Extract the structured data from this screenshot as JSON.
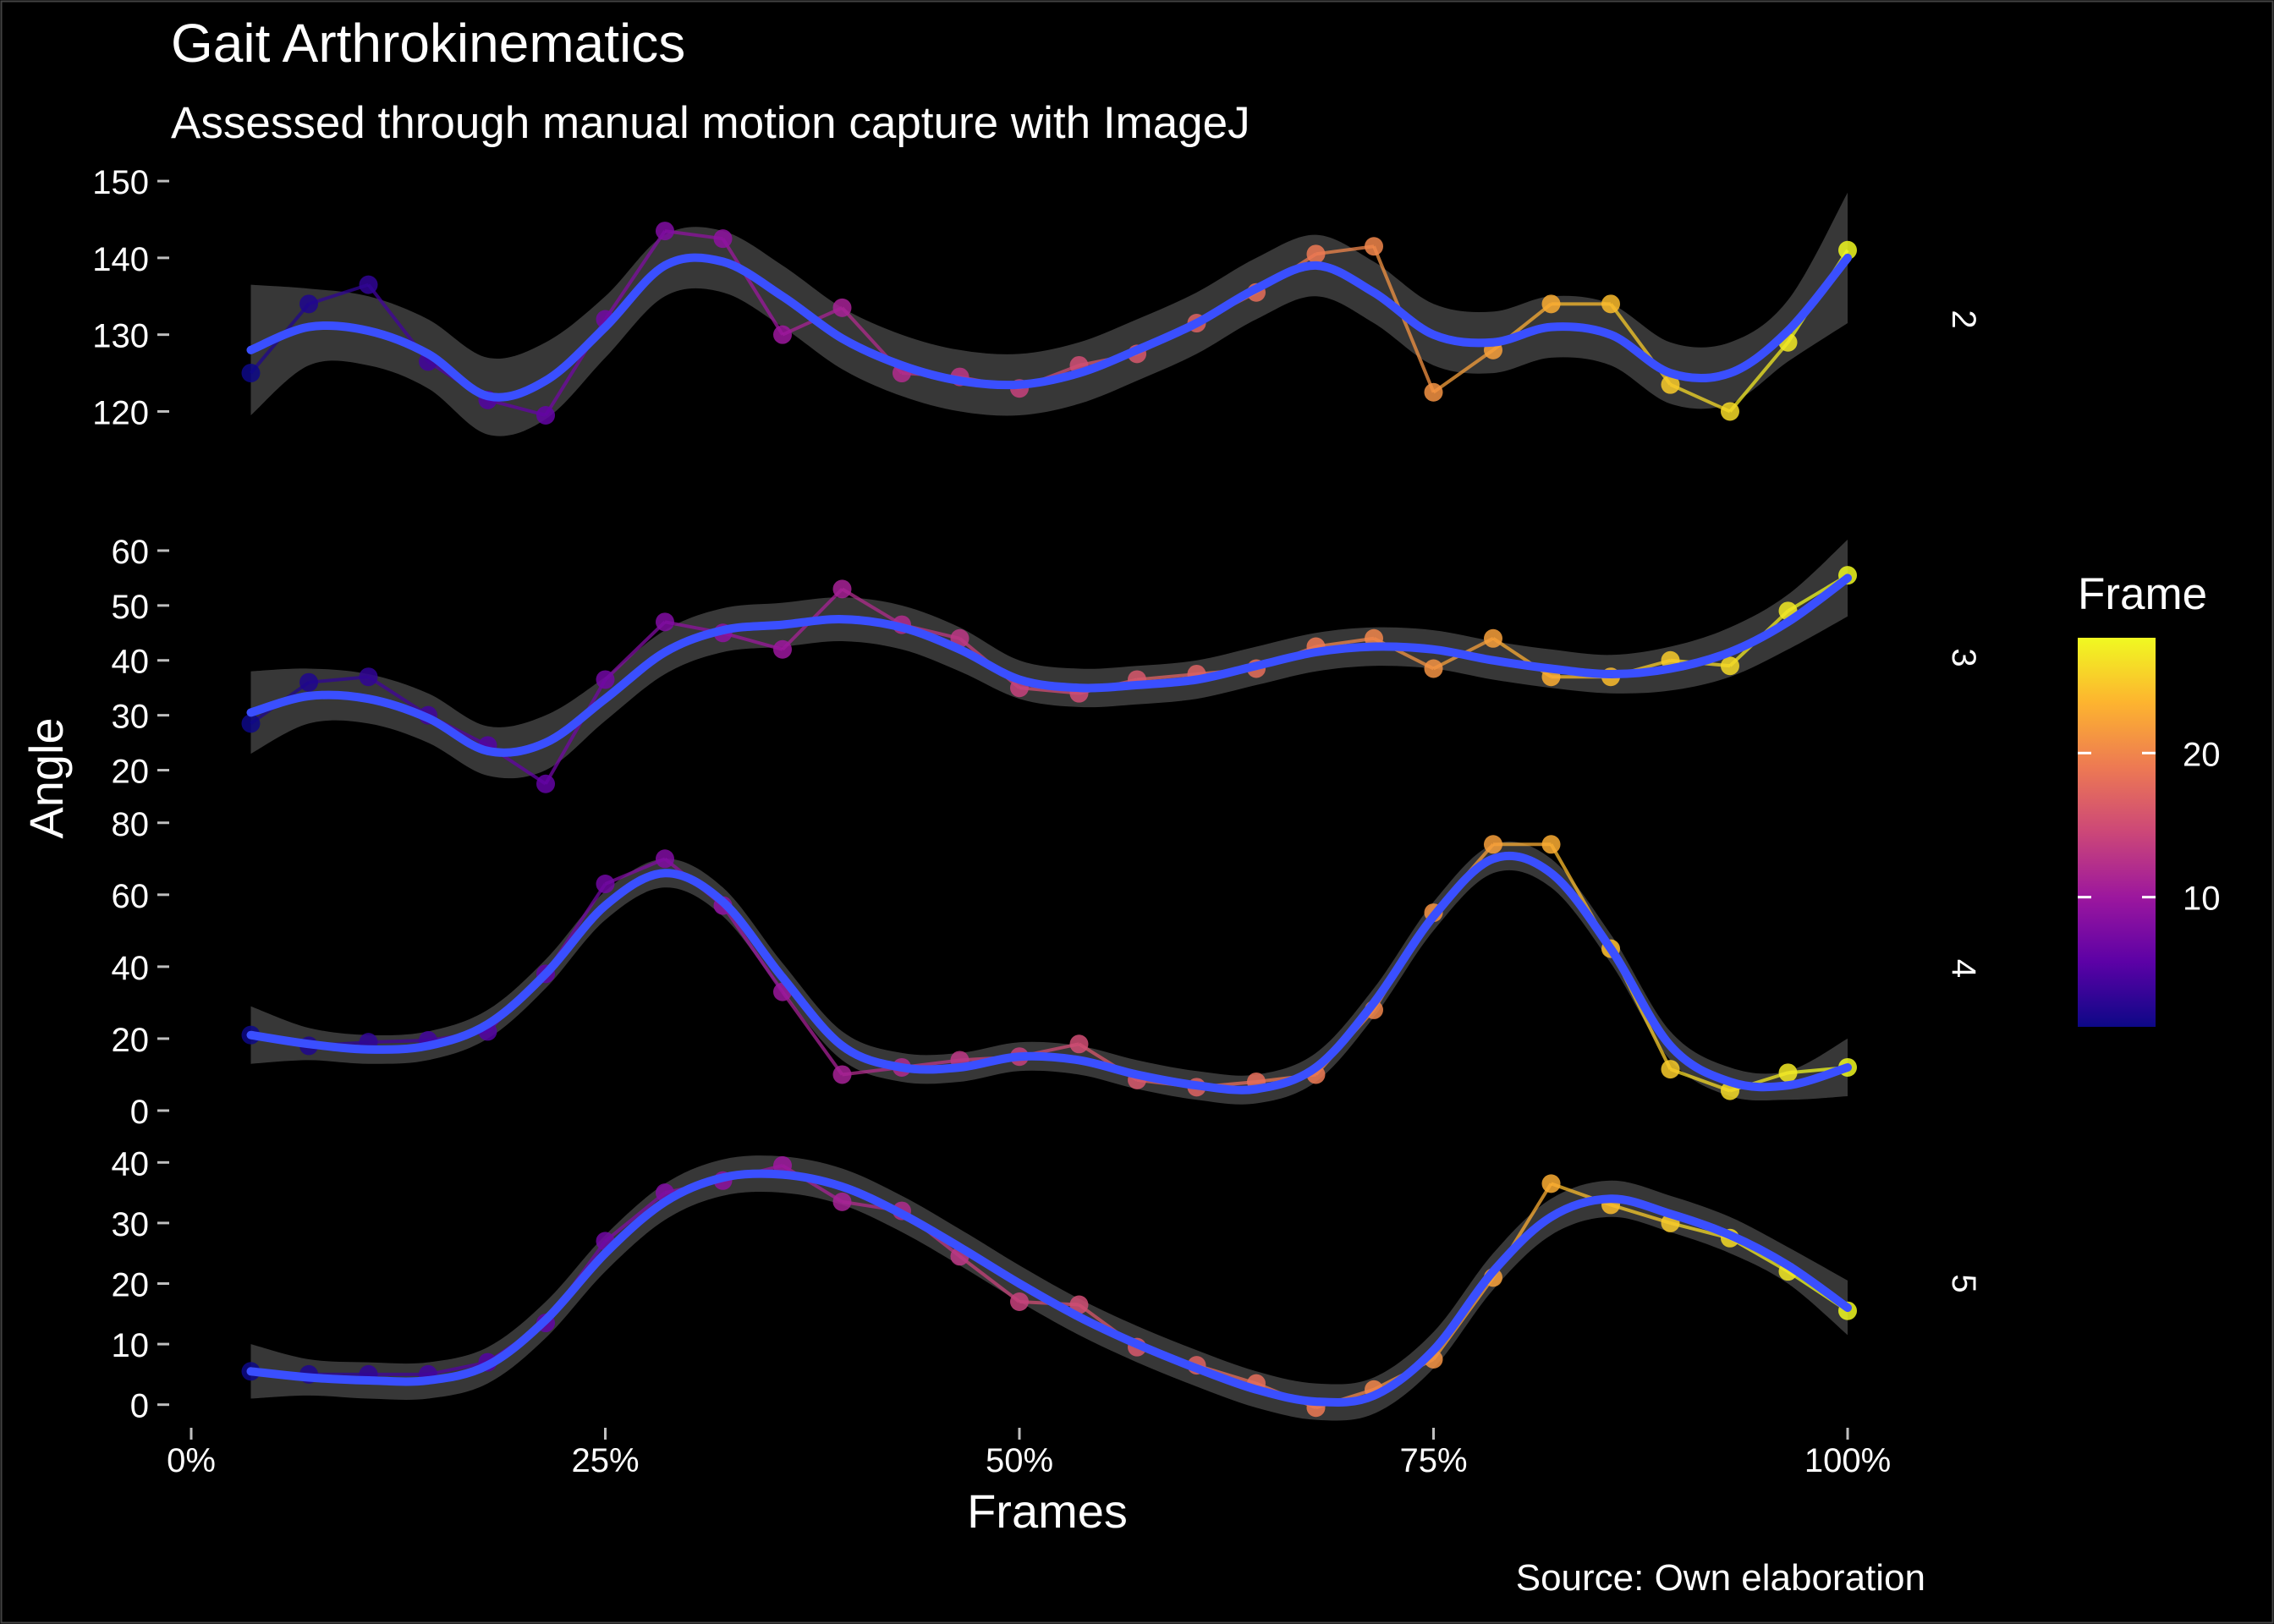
{
  "chart_data": {
    "type": "line",
    "title": "Gait Arthrokinematics",
    "subtitle": "Assessed through manual motion capture with ImageJ",
    "xlabel": "Frames",
    "ylabel": "Angle",
    "caption": "Source: Own elaboration",
    "x_ticks": [
      "0%",
      "25%",
      "50%",
      "75%",
      "100%"
    ],
    "xlim": [
      0,
      100
    ],
    "grid": false,
    "legend": {
      "title": "Frame",
      "position": "right",
      "ticks": [
        10,
        20
      ],
      "range": [
        1,
        28
      ],
      "palette": [
        "#0d0887",
        "#5c01a6",
        "#9c179e",
        "#cc4778",
        "#ed7953",
        "#fdb42f",
        "#f0f921"
      ]
    },
    "colors": {
      "smooth": "#3a4fff",
      "band": "#3a3a3a",
      "background": "#000000"
    },
    "panels": [
      {
        "strip": "2",
        "ylim": [
          113,
          151
        ],
        "y_ticks": [
          "120",
          "130",
          "140",
          "150"
        ],
        "x": [
          3.6,
          7.1,
          10.7,
          14.3,
          17.9,
          21.4,
          25,
          28.6,
          32.1,
          35.7,
          39.3,
          42.9,
          46.4,
          50,
          53.6,
          57.1,
          60.7,
          64.3,
          67.9,
          71.4,
          75,
          78.6,
          82.1,
          85.7,
          89.3,
          92.9,
          96.4,
          100
        ],
        "values": [
          125,
          134,
          136.5,
          126.5,
          121.5,
          119.5,
          132,
          143.5,
          142.5,
          130,
          133.5,
          125,
          124.5,
          123,
          126,
          127.5,
          131.5,
          135.5,
          140.5,
          141.5,
          122.5,
          128,
          134,
          134,
          123.5,
          120,
          129,
          141
        ],
        "smooth": [
          128,
          131,
          130.5,
          127.5,
          122,
          124,
          131,
          139,
          139.5,
          135,
          129.5,
          126,
          124,
          123.5,
          125,
          128,
          131.5,
          136,
          139,
          135.5,
          130,
          129,
          131,
          130,
          125,
          125,
          130.5,
          140
        ],
        "band_halfwidth": [
          8.5,
          5,
          4.5,
          4.5,
          5,
          5,
          4,
          4,
          4,
          4,
          4,
          4,
          4,
          4,
          4,
          4,
          4,
          4,
          4,
          4,
          4,
          4,
          4,
          4,
          4,
          4,
          4,
          8.5
        ]
      },
      {
        "strip": "3",
        "ylim": [
          17,
          64
        ],
        "y_ticks": [
          "20",
          "30",
          "40",
          "50",
          "60"
        ],
        "x": [
          3.6,
          7.1,
          10.7,
          14.3,
          17.9,
          21.4,
          25,
          28.6,
          32.1,
          35.7,
          39.3,
          42.9,
          46.4,
          50,
          53.6,
          57.1,
          60.7,
          64.3,
          67.9,
          71.4,
          75,
          78.6,
          82.1,
          85.7,
          89.3,
          92.9,
          96.4,
          100
        ],
        "values": [
          28.5,
          36,
          37,
          30,
          24.5,
          17.5,
          36.5,
          47,
          45,
          42,
          53,
          46.5,
          44,
          35,
          34,
          36.5,
          37.5,
          38.5,
          42.5,
          44,
          38.5,
          44,
          37,
          37,
          40,
          39,
          49,
          55.5
        ],
        "smooth": [
          30.5,
          33.5,
          33,
          29.5,
          23.5,
          25,
          33,
          41.5,
          45.5,
          46.5,
          47.5,
          46,
          42,
          36.5,
          35,
          35.5,
          36.5,
          39,
          41.5,
          42.5,
          42,
          40,
          38.5,
          37.5,
          38.5,
          41.5,
          47,
          55
        ],
        "band_halfwidth": [
          7.5,
          5,
          4.5,
          4.5,
          4.5,
          5,
          4,
          4,
          4,
          4,
          4,
          4,
          4,
          3.5,
          3.5,
          3.5,
          3.5,
          3.5,
          3.5,
          3.5,
          3.5,
          3.5,
          3.5,
          3.5,
          4,
          4.5,
          5,
          7
        ]
      },
      {
        "strip": "4",
        "ylim": [
          -4,
          83
        ],
        "y_ticks": [
          "0",
          "20",
          "40",
          "60",
          "80"
        ],
        "x": [
          3.6,
          7.1,
          10.7,
          14.3,
          17.9,
          21.4,
          25,
          28.6,
          32.1,
          35.7,
          39.3,
          42.9,
          46.4,
          50,
          53.6,
          57.1,
          60.7,
          64.3,
          67.9,
          71.4,
          75,
          78.6,
          82.1,
          85.7,
          89.3,
          92.9,
          96.4,
          100
        ],
        "values": [
          21,
          18,
          19,
          19.5,
          22,
          38,
          63,
          70,
          57,
          33,
          10,
          12,
          14,
          15,
          18.5,
          8.5,
          6.5,
          8,
          10,
          28,
          55,
          74,
          74,
          45,
          11.5,
          5.5,
          10.5,
          12
        ],
        "smooth": [
          21,
          18.5,
          17,
          18,
          24,
          38,
          57,
          66,
          58,
          37,
          18,
          12,
          12,
          15,
          14,
          10,
          7,
          6,
          12,
          30,
          54,
          70,
          66,
          45,
          18,
          8,
          7,
          12
        ],
        "band_halfwidth": [
          8,
          4.5,
          4,
          4,
          4,
          4,
          4,
          4,
          4,
          4,
          4,
          4,
          4,
          4,
          4,
          4,
          4,
          4,
          4,
          4,
          4,
          4,
          4,
          4,
          4,
          4,
          4,
          8
        ]
      },
      {
        "strip": "5",
        "ylim": [
          -2,
          42
        ],
        "y_ticks": [
          "0",
          "10",
          "20",
          "30",
          "40"
        ],
        "x": [
          3.6,
          7.1,
          10.7,
          14.3,
          17.9,
          21.4,
          25,
          28.6,
          32.1,
          35.7,
          39.3,
          42.9,
          46.4,
          50,
          53.6,
          57.1,
          60.7,
          64.3,
          67.9,
          71.4,
          75,
          78.6,
          82.1,
          85.7,
          89.3,
          92.9,
          96.4,
          100
        ],
        "values": [
          5.5,
          5,
          5,
          5,
          7,
          13.5,
          27,
          35,
          37,
          39.5,
          33.5,
          32,
          24.5,
          17,
          16.5,
          9.5,
          6.5,
          3.5,
          -0.5,
          2.5,
          7.5,
          21,
          36.5,
          33,
          30,
          27.5,
          22,
          15.5
        ],
        "smooth": [
          5.5,
          4.5,
          4,
          4,
          6.5,
          14,
          25,
          33.5,
          37.5,
          38,
          36,
          31.5,
          26,
          20,
          14.5,
          10,
          6,
          2.5,
          0.5,
          1.5,
          9,
          22,
          31,
          34,
          31.5,
          28,
          23,
          16
        ],
        "band_halfwidth": [
          4.5,
          3,
          3,
          3,
          3,
          3,
          3,
          3,
          3,
          3,
          3,
          3,
          3,
          3,
          3,
          3,
          3,
          3,
          3,
          3,
          3,
          3,
          3,
          3,
          3,
          3,
          3,
          4.5
        ]
      }
    ]
  }
}
